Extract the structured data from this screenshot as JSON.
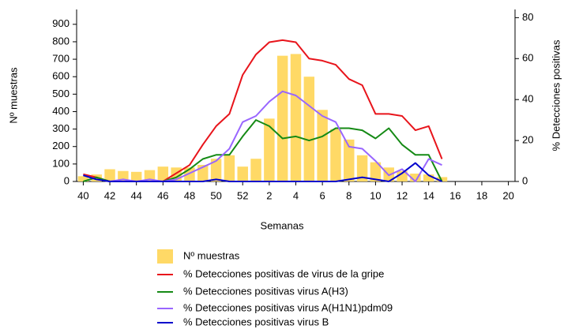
{
  "chart_data": {
    "type": "combo",
    "x_label": "Semanas",
    "y_label": "Nº muestras",
    "y2_label": "% Detecciones positivas",
    "categories": [
      "40",
      null,
      "42",
      null,
      "44",
      null,
      "46",
      null,
      "48",
      null,
      "50",
      null,
      "52",
      null,
      "2",
      null,
      "4",
      null,
      "6",
      null,
      "8",
      null,
      "10",
      null,
      "12",
      null,
      "14",
      null,
      "16",
      null,
      "18",
      null,
      "20"
    ],
    "ylim": [
      0,
      985
    ],
    "yticks": [
      0,
      100,
      200,
      300,
      400,
      500,
      600,
      700,
      800,
      900
    ],
    "y2lim": [
      0,
      84
    ],
    "y2ticks": [
      0,
      20,
      40,
      60,
      80
    ],
    "series": [
      {
        "name": "Nº muestras",
        "type": "bar",
        "color": "#ffd966",
        "values": [
          30,
          40,
          70,
          60,
          55,
          65,
          85,
          80,
          80,
          95,
          130,
          150,
          85,
          130,
          360,
          720,
          730,
          600,
          410,
          300,
          240,
          150,
          110,
          80,
          60,
          45,
          40,
          25,
          null,
          null,
          null,
          null,
          null
        ]
      },
      {
        "name": "% Detecciones positivas de virus de la gripe",
        "type": "line",
        "axis": "y2",
        "color": "#e8141b",
        "values": [
          3.5,
          2,
          0,
          0,
          0,
          0,
          0,
          4,
          8,
          18,
          27,
          33,
          52,
          62,
          68,
          69,
          68,
          60,
          59,
          57,
          50,
          47,
          33,
          33,
          32,
          25,
          27,
          11,
          null,
          null,
          null,
          null,
          null
        ]
      },
      {
        "name": "% Detecciones positivas virus A(H3)",
        "type": "line",
        "axis": "y2",
        "color": "#158a15",
        "values": [
          0,
          2,
          0,
          0,
          0,
          0,
          0,
          2,
          6,
          11,
          13,
          13,
          22,
          30,
          27,
          21,
          22,
          20,
          22,
          26,
          26,
          25,
          21,
          26,
          18,
          13,
          13,
          0,
          null,
          null,
          null,
          null,
          null
        ]
      },
      {
        "name": "% Detecciones positivas virus A(H1N1)pdm09",
        "type": "line",
        "axis": "y2",
        "color": "#9966ff",
        "values": [
          3,
          1,
          0,
          1,
          0,
          1,
          0,
          1,
          4,
          7,
          10,
          16,
          29,
          32,
          39,
          44,
          42,
          37,
          32,
          29,
          17,
          16,
          10,
          3,
          6,
          0,
          11,
          8,
          null,
          null,
          null,
          null,
          null
        ]
      },
      {
        "name": "% Detecciones positivas virus B",
        "type": "line",
        "axis": "y2",
        "color": "#0000cc",
        "values": [
          3,
          1,
          0,
          0,
          0,
          0,
          0,
          0,
          0,
          0,
          1,
          0,
          0,
          0,
          0,
          0,
          0,
          0,
          0,
          0,
          1,
          2,
          1,
          0,
          4,
          9,
          3,
          0,
          null,
          null,
          null,
          null,
          null
        ]
      }
    ]
  }
}
